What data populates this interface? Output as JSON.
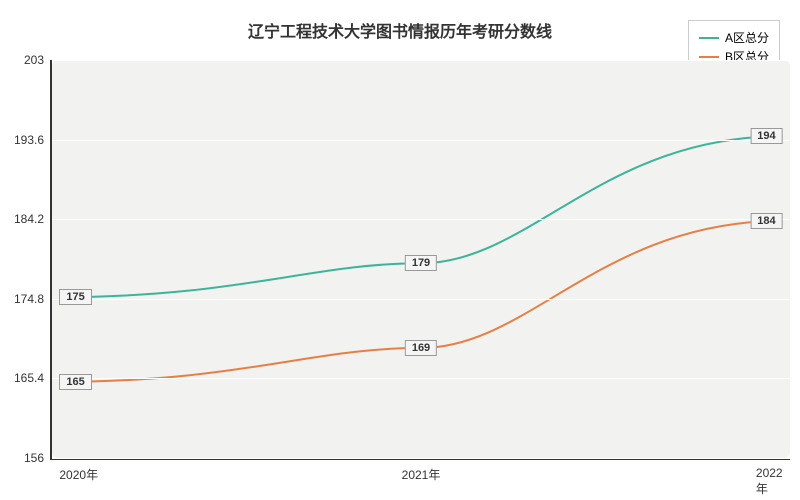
{
  "chart": {
    "type": "line",
    "title": "辽宁工程技术大学图书情报历年考研分数线",
    "title_fontsize": 16,
    "background_color": "#ffffff",
    "plot_background_color": "#f2f2f0",
    "plot_border_radius": 6,
    "grid_color": "#ffffff",
    "axis_color": "#333333",
    "tick_font_size": 12,
    "x_categories": [
      "2020年",
      "2021年",
      "2022年"
    ],
    "x_positions_pct": [
      1,
      50,
      99
    ],
    "ylim": [
      156,
      203
    ],
    "y_ticks": [
      156,
      165.4,
      174.8,
      184.2,
      193.6,
      203
    ],
    "series": [
      {
        "name": "A区总分",
        "color": "#3cb49a",
        "line_width": 2,
        "values": [
          175,
          179,
          194
        ],
        "smooth": true
      },
      {
        "name": "B区总分",
        "color": "#e67f45",
        "line_width": 2,
        "values": [
          165,
          169,
          184
        ],
        "smooth": true
      }
    ],
    "legend": {
      "position": "top-right",
      "border_color": "#cccccc",
      "background": "#ffffff",
      "font_size": 12
    },
    "data_label_style": {
      "background": "#f5f5f5",
      "border_color": "#999999",
      "font_size": 11,
      "font_weight": "bold"
    }
  }
}
